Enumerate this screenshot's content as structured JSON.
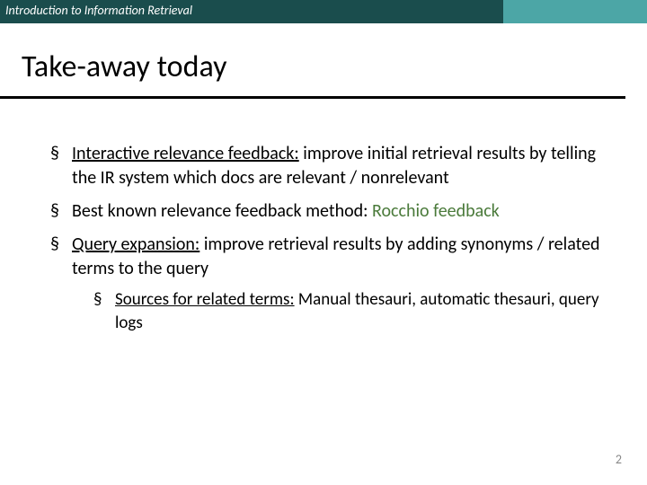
{
  "header": {
    "text": "Introduction to Information Retrieval",
    "dark_color": "#1a4d4d",
    "light_color": "#4ca6a6"
  },
  "title": "Take-away today",
  "bullets": [
    {
      "underlined": "Interactive relevance feedback:",
      "rest": " improve initial retrieval results by telling the IR system which docs are relevant / nonrelevant"
    },
    {
      "prefix": "Best known relevance feedback method: ",
      "green": "Rocchio feedback"
    },
    {
      "underlined": "Query expansion:",
      "rest": " improve retrieval results by adding synonyms / related terms to the query",
      "sub": {
        "underlined": "Sources for related terms:",
        "rest": " Manual thesauri, automatic thesauri, query logs"
      }
    }
  ],
  "page_number": "2",
  "colors": {
    "green_text": "#4a7a3a",
    "background": "#ffffff"
  }
}
